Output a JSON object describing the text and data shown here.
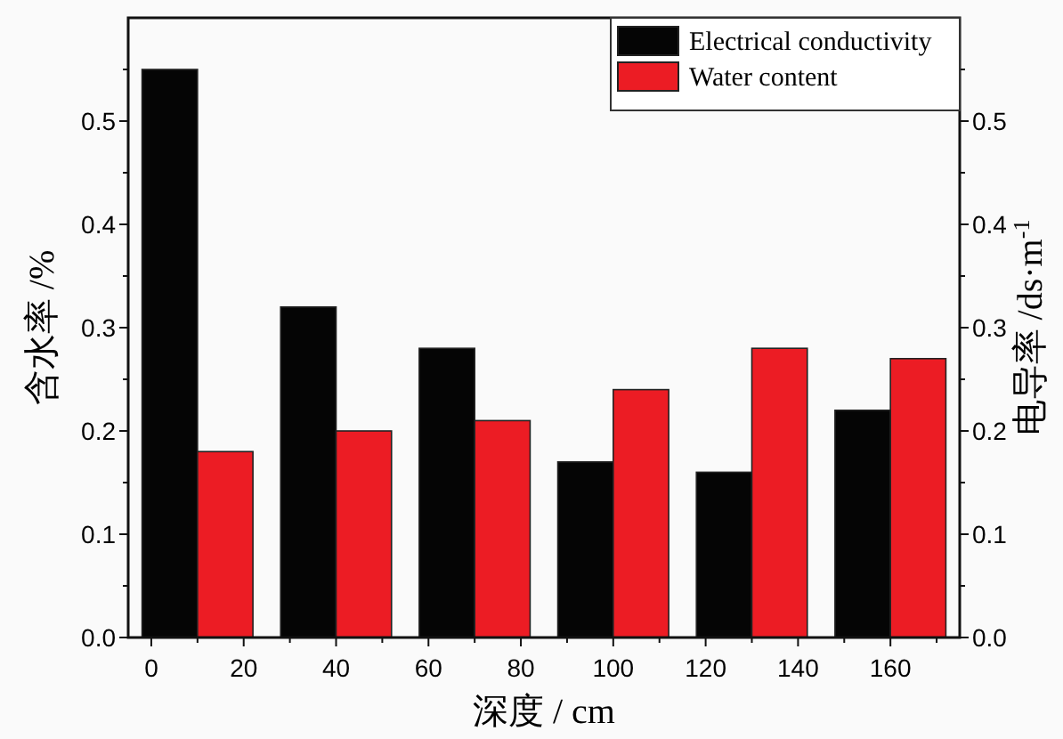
{
  "chart_data": {
    "type": "bar",
    "xlabel": "深度 / cm",
    "ylabel": "含水率 /%",
    "y2label": "电导率 /ds·m$^{-1}$",
    "xlim": [
      -5,
      175
    ],
    "xticks": [
      0,
      {
        "value": 10,
        "label": null
      },
      20,
      {
        "value": 30,
        "label": null
      },
      40,
      {
        "value": 50,
        "label": null
      },
      60,
      {
        "value": 70,
        "label": null
      },
      80,
      {
        "value": 90,
        "label": null
      },
      100,
      {
        "value": 110,
        "label": null
      },
      120,
      {
        "value": 130,
        "label": null
      },
      140,
      {
        "value": 150,
        "label": null
      },
      160,
      {
        "value": 170,
        "label": null
      }
    ],
    "ylim": [
      0,
      0.6
    ],
    "yticks": [
      {
        "value": 0,
        "label": "0.0"
      },
      {
        "value": 0.05,
        "label": null
      },
      0.1,
      {
        "value": 0.15,
        "label": null
      },
      0.2,
      {
        "value": 0.25,
        "label": null
      },
      0.3,
      {
        "value": 0.35,
        "label": null
      },
      0.4,
      {
        "value": 0.45,
        "label": null
      },
      0.5,
      {
        "value": 0.55,
        "label": null
      }
    ],
    "y2lim": [
      0,
      0.6
    ],
    "y2ticks": [
      {
        "value": 0,
        "label": "0.0"
      },
      {
        "value": 0.05,
        "label": null
      },
      0.1,
      {
        "value": 0.15,
        "label": null
      },
      0.2,
      {
        "value": 0.25,
        "label": null
      },
      0.3,
      {
        "value": 0.35,
        "label": null
      },
      0.4,
      {
        "value": 0.45,
        "label": null
      },
      0.5,
      {
        "value": 0.55,
        "label": null
      }
    ],
    "legend": "top right",
    "grid": false,
    "series": [
      {
        "name": "Electrical conductivity",
        "color": "#050505",
        "x": [
          4,
          34,
          64,
          94,
          124,
          154
        ],
        "values": [
          0.55,
          0.32,
          0.28,
          0.17,
          0.16,
          0.22
        ]
      },
      {
        "name": "Water content",
        "color": "#ec1c24",
        "x": [
          16,
          46,
          76,
          106,
          136,
          166
        ],
        "values": [
          0.18,
          0.2,
          0.21,
          0.24,
          0.28,
          0.27
        ]
      }
    ]
  }
}
